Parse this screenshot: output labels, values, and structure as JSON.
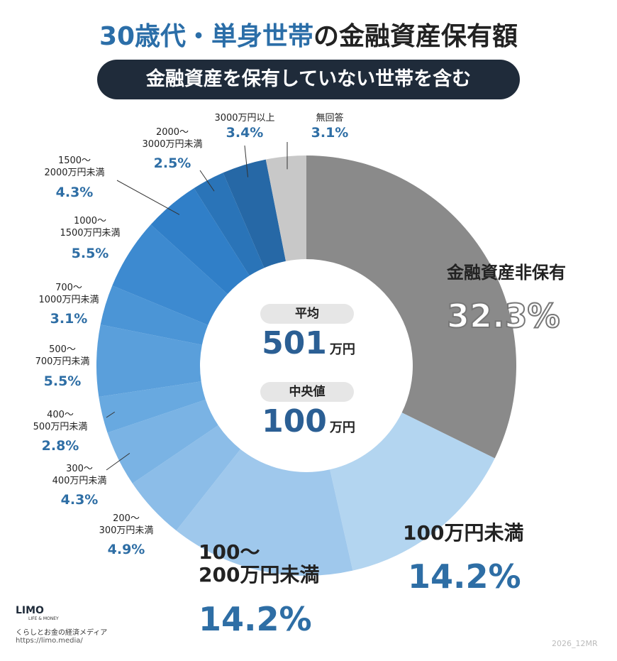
{
  "header": {
    "title": {
      "highlight": "30歳代・単身世帯",
      "rest": "の金融資産保有額"
    },
    "subtitle": "金融資産を保有していない世帯を含む"
  },
  "chart_data": {
    "type": "donut",
    "categories": [
      "金融資産非保有",
      "100万円未満",
      "100〜\n200万円未満",
      "200〜\n300万円未満",
      "300〜\n400万円未満",
      "400〜\n500万円未満",
      "500〜\n700万円未満",
      "700〜\n1000万円未満",
      "1000〜\n1500万円未満",
      "1500〜\n2000万円未満",
      "2000〜\n3000万円未満",
      "3000万円以上",
      "無回答"
    ],
    "values": [
      32.3,
      14.2,
      14.2,
      4.9,
      4.3,
      2.8,
      5.5,
      3.1,
      5.5,
      4.3,
      2.5,
      3.4,
      3.1
    ],
    "value_labels": [
      "32.3%",
      "14.2%",
      "14.2%",
      "4.9%",
      "4.3%",
      "2.8%",
      "5.5%",
      "3.1%",
      "5.5%",
      "4.3%",
      "2.5%",
      "3.4%",
      "3.1%"
    ],
    "colors": [
      "#8a8a8a",
      "#b3d5f0",
      "#9fc8ec",
      "#8cbde8",
      "#7ab3e4",
      "#68a9e0",
      "#5a9fdb",
      "#4b95d6",
      "#3d8ad0",
      "#307fc8",
      "#2a74b8",
      "#2668a6",
      "#c8c8c8"
    ]
  },
  "center": {
    "mean": {
      "label": "平均",
      "value": 501,
      "unit": "万円"
    },
    "median": {
      "label": "中央値",
      "value": 100,
      "unit": "万円"
    }
  },
  "footer": {
    "logo": "LIMO",
    "logo_sub": "LIFE & MONEY",
    "tagline": "くらしとお金の経済メディア",
    "url": "https://limo.media/",
    "code": "2026_12MR"
  }
}
